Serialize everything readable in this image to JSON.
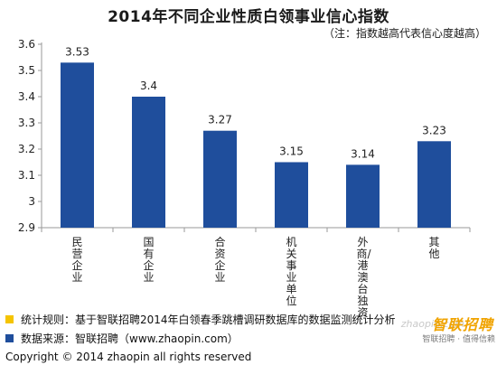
{
  "title": "2014年不同企业性质白领事业信心指数",
  "note": "（注：指数越高代表信心度越高）",
  "colors": {
    "bar": "#1f4e9c",
    "footer_swatch_1": "#f5c400",
    "footer_swatch_2": "#1f4e9c",
    "logo": "#f0a300"
  },
  "chart_data": {
    "type": "bar",
    "title": "2014年不同企业性质白领事业信心指数",
    "categories": [
      "民营企业",
      "国有企业",
      "合资企业",
      "机关事业单位",
      "外商/港澳台独资",
      "其他"
    ],
    "values": [
      3.53,
      3.4,
      3.27,
      3.15,
      3.14,
      3.23
    ],
    "data_labels": [
      "3.53",
      "3.4",
      "3.27",
      "3.15",
      "3.14",
      "3.23"
    ],
    "ylim": [
      2.9,
      3.6
    ],
    "yticks": [
      "2.9",
      "3",
      "3.1",
      "3.2",
      "3.3",
      "3.4",
      "3.5",
      "3.6"
    ],
    "ytick_values": [
      2.9,
      3.0,
      3.1,
      3.2,
      3.3,
      3.4,
      3.5,
      3.6
    ],
    "grid": false,
    "legend": "none"
  },
  "footer": {
    "rule": "统计规则：基于智联招聘2014年白领春季跳槽调研数据库的数据监测统计分析",
    "source": "数据来源：智联招聘（www.zhaopin.com）",
    "copyright": "Copyright  ©  2014 zhaopin all rights reserved"
  },
  "logo": {
    "main": "智联招聘",
    "domain": "zhaopin.com",
    "sub": "智联招聘 · 值得信赖"
  }
}
